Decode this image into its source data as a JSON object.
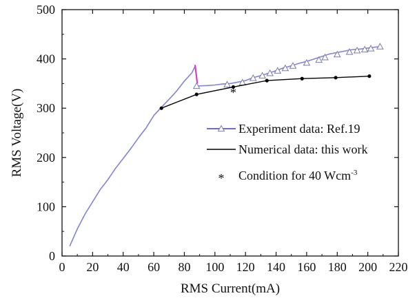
{
  "chart_data": {
    "type": "line",
    "xlabel": "RMS Current(mA)",
    "ylabel": "RMS Voltage(V)",
    "xlim": [
      0,
      220
    ],
    "ylim": [
      0,
      500
    ],
    "xticks": [
      0,
      20,
      40,
      60,
      80,
      100,
      120,
      140,
      160,
      180,
      200,
      220
    ],
    "yticks": [
      0,
      100,
      200,
      300,
      400,
      500
    ],
    "grid": false,
    "legend_position": "center-right",
    "series": [
      {
        "name": "Experiment data: Ref.19",
        "color": "#6b6bd6",
        "marker": "triangle",
        "segments": [
          [
            [
              5,
              20
            ],
            [
              10,
              55
            ],
            [
              15,
              85
            ],
            [
              20,
              110
            ],
            [
              25,
              135
            ],
            [
              30,
              155
            ],
            [
              35,
              178
            ],
            [
              40,
              198
            ],
            [
              45,
              218
            ],
            [
              50,
              240
            ],
            [
              55,
              260
            ],
            [
              60,
              285
            ],
            [
              65,
              302
            ],
            [
              70,
              318
            ],
            [
              75,
              335
            ],
            [
              80,
              355
            ],
            [
              85,
              372
            ],
            [
              87,
              385
            ]
          ],
          [
            [
              88,
              345
            ],
            [
              95,
              346
            ],
            [
              100,
              347
            ],
            [
              105,
              349
            ],
            [
              110,
              350
            ],
            [
              115,
              353
            ],
            [
              120,
              356
            ],
            [
              125,
              362
            ],
            [
              130,
              366
            ],
            [
              135,
              371
            ],
            [
              140,
              376
            ],
            [
              145,
              382
            ],
            [
              150,
              386
            ],
            [
              155,
              391
            ],
            [
              160,
              395
            ],
            [
              165,
              400
            ],
            [
              170,
              405
            ],
            [
              175,
              410
            ],
            [
              180,
              413
            ],
            [
              185,
              416
            ],
            [
              190,
              419
            ],
            [
              195,
              420
            ],
            [
              200,
              422
            ],
            [
              205,
              424
            ],
            [
              208,
              425
            ]
          ]
        ],
        "spike": [
          [
            87,
            388
          ],
          [
            88.5,
            350
          ]
        ],
        "spike_color": "#d63fbf",
        "markers": [
          [
            88,
            345
          ],
          [
            108,
            348
          ],
          [
            118,
            352
          ],
          [
            125,
            361
          ],
          [
            131,
            366
          ],
          [
            136,
            371
          ],
          [
            141,
            376
          ],
          [
            146,
            381
          ],
          [
            151,
            386
          ],
          [
            160,
            392
          ],
          [
            168,
            398
          ],
          [
            172,
            403
          ],
          [
            180,
            409
          ],
          [
            188,
            414
          ],
          [
            193,
            417
          ],
          [
            198,
            419
          ],
          [
            202,
            421
          ],
          [
            208,
            425
          ]
        ]
      },
      {
        "name": "Numerical data: this work",
        "color": "#000000",
        "marker": "dot",
        "points": [
          [
            65,
            300
          ],
          [
            88,
            328
          ],
          [
            112,
            343
          ],
          [
            134,
            356
          ],
          [
            157,
            360
          ],
          [
            179,
            362
          ],
          [
            201,
            365
          ]
        ]
      },
      {
        "name": "Condition for 40 Wcm",
        "name_superscript": "-3",
        "color": "#000000",
        "marker": "asterisk",
        "points": [
          [
            112,
            340
          ]
        ]
      }
    ]
  }
}
